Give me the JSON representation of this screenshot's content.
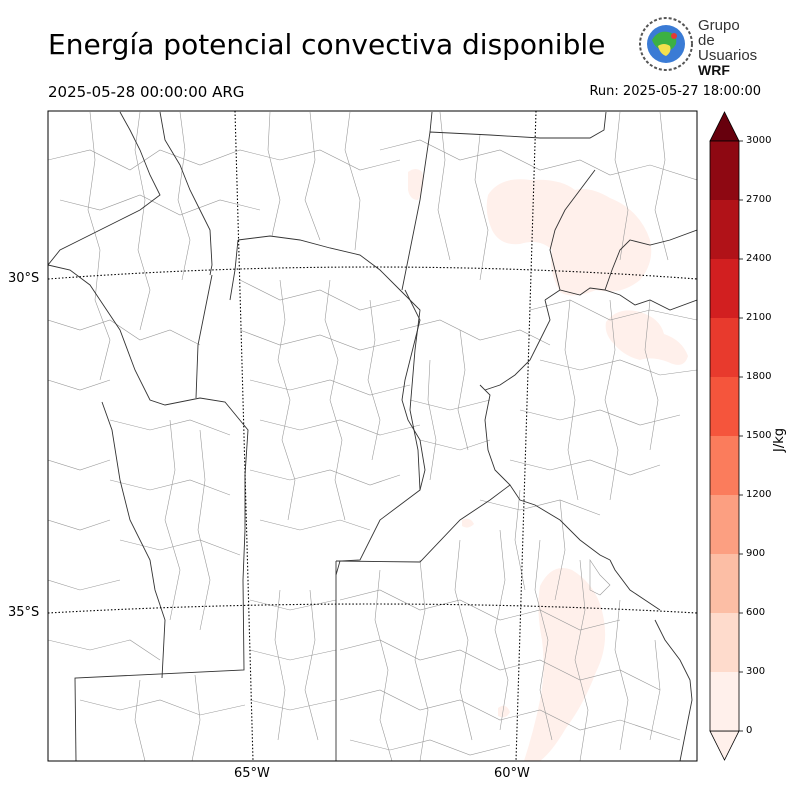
{
  "header": {
    "title": "Energía potencial convectiva disponible",
    "valid_time": "2025-05-28 00:00:00 ARG",
    "run_time": "Run: 2025-05-27 18:00:00"
  },
  "logo": {
    "line1": "Grupo de",
    "line2": "Usuarios",
    "line3": "WRF"
  },
  "map": {
    "lat_labels": [
      "30°S",
      "35°S"
    ],
    "lon_labels": [
      "65°W",
      "60°W"
    ]
  },
  "colorbar": {
    "unit": "J/kg",
    "ticks": [
      "0",
      "300",
      "600",
      "900",
      "1200",
      "1500",
      "1800",
      "2100",
      "2400",
      "2700",
      "3000"
    ],
    "colors": [
      "#fff0eb",
      "#fedbcc",
      "#fcbea5",
      "#fc9f81",
      "#fb7c5c",
      "#f5553c",
      "#e83a2d",
      "#d21f20",
      "#b11218",
      "#8e0812",
      "#67000d"
    ],
    "extend_color": "#67000d"
  }
}
